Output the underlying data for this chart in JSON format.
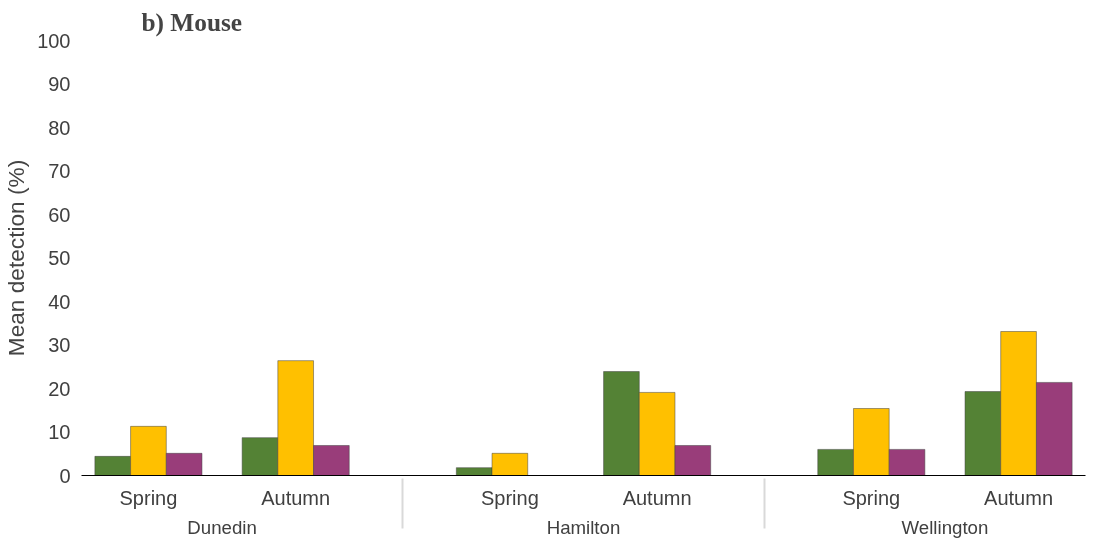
{
  "chart_data": {
    "type": "bar",
    "title": "b) Mouse",
    "ylabel": "Mean detection (%)",
    "categories": [
      "Spring",
      "Autumn",
      "Spring",
      "Autumn",
      "Spring",
      "Autumn"
    ],
    "annotations": [
      "Dunedin",
      "Hamilton",
      "Wellington"
    ],
    "series": [
      {
        "color": "#548235",
        "values": [
          4.4,
          8.7,
          1.8,
          23.9,
          6.0,
          19.3
        ]
      },
      {
        "color": "#ffc000",
        "values": [
          11.3,
          26.4,
          5.1,
          19.1,
          15.4,
          33.1
        ]
      },
      {
        "color": "#993d7a",
        "values": [
          5.1,
          6.9,
          null,
          6.9,
          6.0,
          21.4
        ]
      }
    ],
    "ylim": [
      0,
      100
    ],
    "yticks": [
      0,
      10,
      20,
      30,
      40,
      50,
      60,
      70,
      80,
      90,
      100
    ],
    "grid": false
  }
}
